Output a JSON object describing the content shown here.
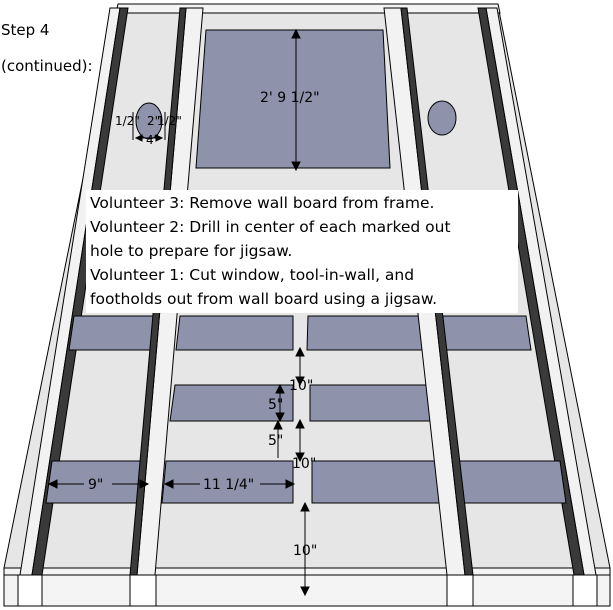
{
  "step": {
    "title": "Step 4",
    "subtitle": "(continued):"
  },
  "instructions": [
    {
      "who": "Volunteer 3",
      "lines": [
        ": Remove wall board from frame."
      ]
    },
    {
      "who": "Volunteer 2",
      "lines": [
        ": Drill in center of each marked out",
        "hole to prepare for jigsaw."
      ]
    },
    {
      "who": "Volunteer 1",
      "lines": [
        ": Cut window, tool-in-wall, and",
        "footholds out from wall board using a jigsaw."
      ]
    }
  ],
  "dimensions": {
    "window_height": "2' 9 1/2\"",
    "hole_left": "1/2\"",
    "hole_mid": "2\"",
    "hole_right": "1/2\"",
    "hole_width": "4\"",
    "gap_upper": "10\"",
    "strip_height_1": "5\"",
    "strip_height_2": "5\"",
    "gap_middle": "10\"",
    "gap_lower": "10\"",
    "left_width": "9\"",
    "mid_width": "11 1/4\""
  },
  "colors": {
    "board": "#e6e6e6",
    "stud": "#f2f2f2",
    "cutout": "#8e93ab",
    "outline": "#000000"
  }
}
